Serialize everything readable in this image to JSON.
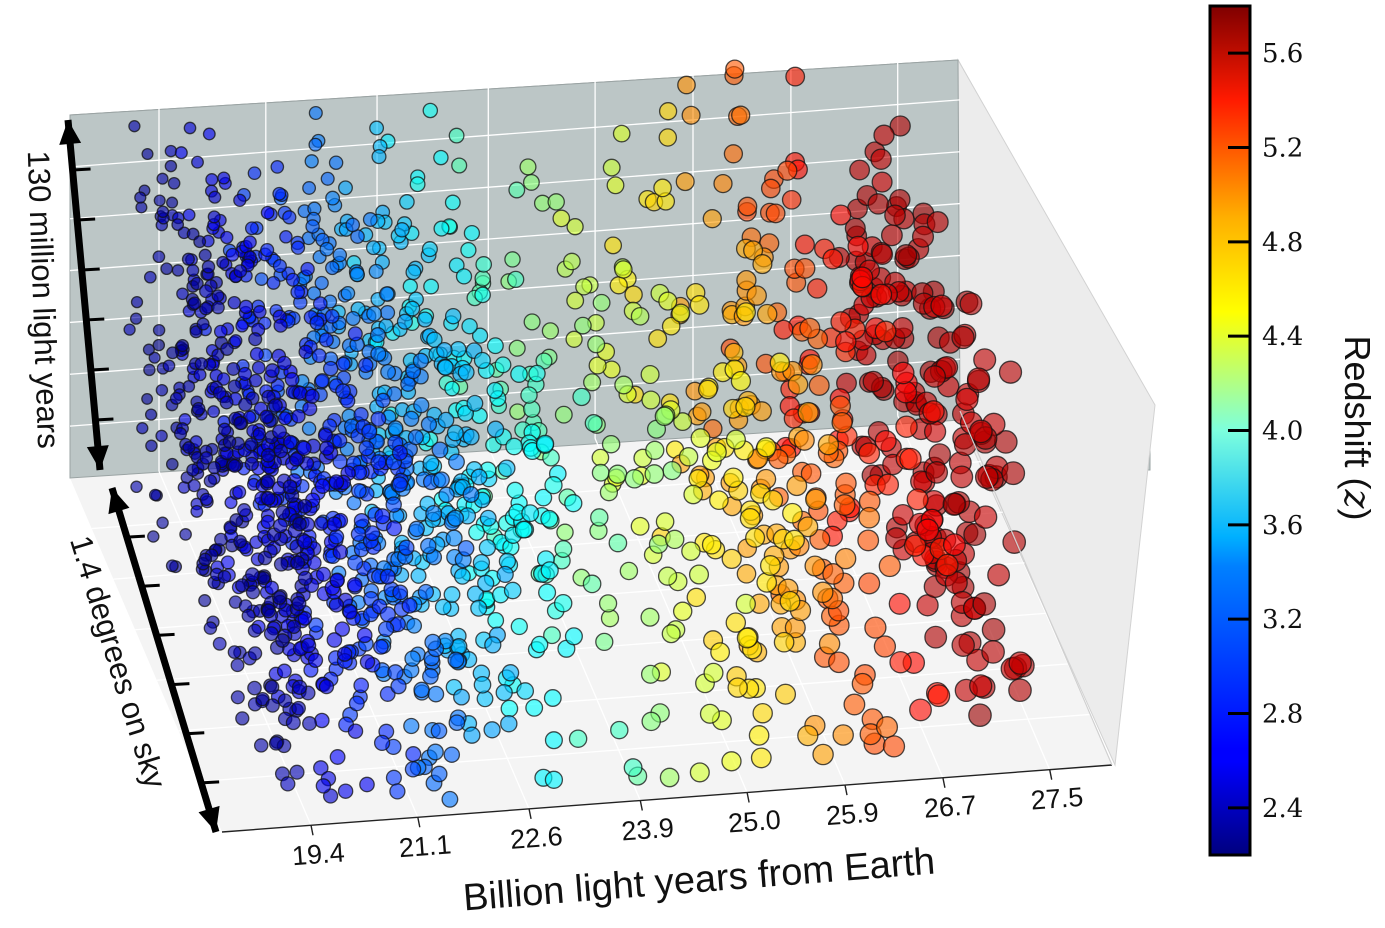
{
  "chart_data": {
    "type": "scatter",
    "subtype": "3d-scatter",
    "xlabel": "Billion light years from Earth",
    "x_ticks": [
      "19.4",
      "21.1",
      "22.6",
      "23.9",
      "25.0",
      "25.9",
      "26.7",
      "27.5"
    ],
    "ylabel": "1.4 degrees on sky",
    "zlabel": "130 million light years",
    "colorbar": {
      "label": "Redshift (z)",
      "ticks": [
        "2.4",
        "2.8",
        "3.2",
        "3.6",
        "4.0",
        "4.4",
        "4.8",
        "5.2",
        "5.6"
      ],
      "range": [
        2.2,
        5.8
      ],
      "colormap": "jet"
    },
    "redshift_range": [
      2.2,
      5.8
    ],
    "grid": true,
    "colors": {
      "pane_back": "#bcc6c6",
      "pane_floor": "#f4f4f4",
      "pane_side": "#ececec",
      "grid": "#ffffff",
      "marker_edge": "#111111"
    },
    "redshift_clusters": [
      {
        "z": 2.35,
        "count": 240
      },
      {
        "z": 2.55,
        "count": 260
      },
      {
        "z": 2.8,
        "count": 230
      },
      {
        "z": 3.05,
        "count": 200
      },
      {
        "z": 3.3,
        "count": 170
      },
      {
        "z": 3.55,
        "count": 110
      },
      {
        "z": 3.8,
        "count": 45
      },
      {
        "z": 4.05,
        "count": 45
      },
      {
        "z": 4.3,
        "count": 55
      },
      {
        "z": 4.55,
        "count": 65
      },
      {
        "z": 4.8,
        "count": 80
      },
      {
        "z": 5.05,
        "count": 70
      },
      {
        "z": 5.3,
        "count": 65
      },
      {
        "z": 5.6,
        "count": 180
      }
    ]
  }
}
